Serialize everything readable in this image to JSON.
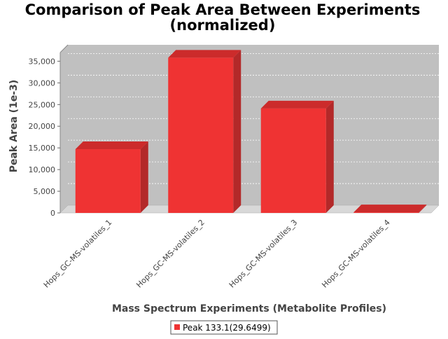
{
  "chart_data": {
    "type": "bar",
    "title_line1": "Comparison of Peak Area Between Experiments",
    "title_line2": "(normalized)",
    "xlabel": "Mass Spectrum Experiments (Metabolite Profiles)",
    "ylabel": "Peak Area (1e-3)",
    "categories": [
      "Hops_GC-MS-volatiles_1",
      "Hops_GC-MS-volatiles_2",
      "Hops_GC-MS-volatiles_3",
      "Hops_GC-MS-volatiles_4"
    ],
    "series": [
      {
        "name": "Peak 133.1(29.6499)",
        "values": [
          14700,
          35800,
          24100,
          150
        ],
        "color": "#ef3333"
      }
    ],
    "ylim": [
      0,
      37000
    ],
    "yticks": [
      0,
      5000,
      10000,
      15000,
      20000,
      25000,
      30000,
      35000
    ],
    "ytick_labels": [
      "0",
      "5,000",
      "10,000",
      "15,000",
      "20,000",
      "25,000",
      "30,000",
      "35,000"
    ],
    "grid": true,
    "legend_position": "bottom",
    "colors": {
      "plot_bg": "#c0c0c0",
      "floor": "#d8d8d8",
      "bar_front": "#ef3333",
      "bar_side": "#b32929",
      "bar_top": "#cc2b2b"
    }
  }
}
